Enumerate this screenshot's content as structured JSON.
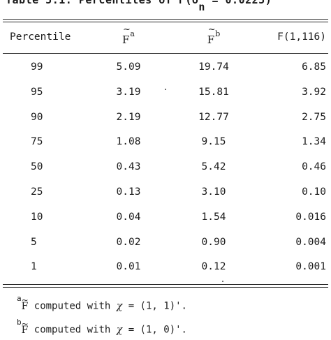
{
  "caption": {
    "prefix": "Table 5.1.  Percentiles of  F(δ",
    "sub": "n",
    "suffix": " = 0.0225)"
  },
  "columns": {
    "percentile": "Percentile",
    "f_a_sup": "a",
    "f_b_sup": "b",
    "f_dist": "F(1,116)"
  },
  "rows": [
    {
      "percentile": "99",
      "f_a": "5.09",
      "f_b": "19.74",
      "f": "6.85"
    },
    {
      "percentile": "95",
      "f_a": "3.19",
      "f_b": "15.81",
      "f": "3.92"
    },
    {
      "percentile": "90",
      "f_a": "2.19",
      "f_b": "12.77",
      "f": "2.75"
    },
    {
      "percentile": "75",
      "f_a": "1.08",
      "f_b": "9.15",
      "f": "1.34"
    },
    {
      "percentile": "50",
      "f_a": "0.43",
      "f_b": "5.42",
      "f": "0.46"
    },
    {
      "percentile": "25",
      "f_a": "0.13",
      "f_b": "3.10",
      "f": "0.10"
    },
    {
      "percentile": "10",
      "f_a": "0.04",
      "f_b": "1.54",
      "f": "0.016"
    },
    {
      "percentile": "5",
      "f_a": "0.02",
      "f_b": "0.90",
      "f": "0.004"
    },
    {
      "percentile": "1",
      "f_a": "0.01",
      "f_b": "0.12",
      "f": "0.001"
    }
  ],
  "footnotes": [
    {
      "mark": "a",
      "text": " computed with ",
      "symbol": "χ",
      "value": " = (1, 1)'."
    },
    {
      "mark": "b",
      "text": " computed with ",
      "symbol": "χ",
      "value": " = (1, 0)'."
    }
  ]
}
